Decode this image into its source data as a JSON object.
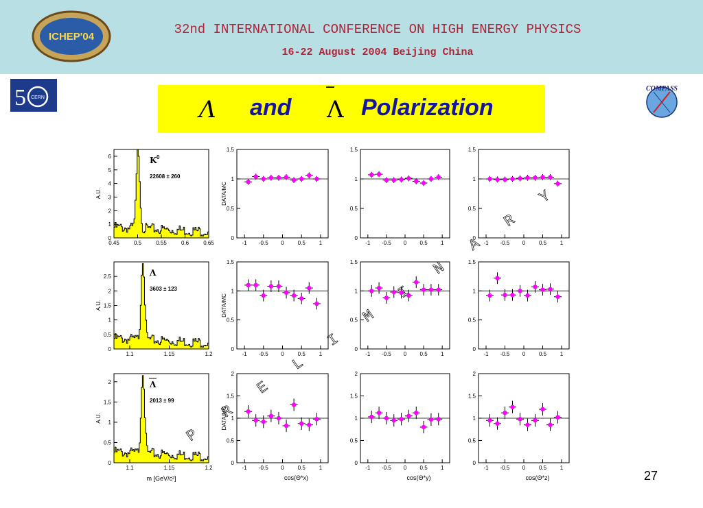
{
  "header": {
    "conference_title": "32nd INTERNATIONAL CONFERENCE ON HIGH ENERGY PHYSICS",
    "conference_date": "16-22 August 2004 Beijing China",
    "ichep_logo_text": "ICHEP'04",
    "cern_logo_text": "CERN",
    "compass_logo_text": "COMPASS"
  },
  "slide": {
    "title_lambda": "Λ",
    "title_and": "and",
    "title_antilambda": "Λ",
    "title_polarization": "Polarization",
    "page_number": "27",
    "watermark": "PRELIMINARY"
  },
  "colors": {
    "header_bg": "#b8dfe3",
    "title_bg": "#ffff00",
    "title_text": "#1515a0",
    "mass_fill": "#ffff00",
    "points": "#ff00ff",
    "header_text": "#b0243a"
  },
  "chart_data": [
    {
      "type": "histogram",
      "panel": "K0 mass",
      "label": "K",
      "label_sup": "0",
      "count_text": "22608 ± 260",
      "ylabel": "A.U.",
      "xlim": [
        0.45,
        0.65
      ],
      "ylim": [
        0,
        6.5
      ],
      "xticks": [
        "0.45",
        "0.5",
        "0.55",
        "0.6",
        "0.65"
      ],
      "yticks": [
        "0",
        "1",
        "2",
        "3",
        "4",
        "5",
        "6"
      ],
      "peak_x": 0.5,
      "peak_y": 5.8
    },
    {
      "type": "histogram",
      "panel": "Lambda mass",
      "label": "Λ",
      "count_text": "3603 ± 123",
      "ylabel": "A.U.",
      "xlim": [
        1.08,
        1.2
      ],
      "ylim": [
        0,
        3.0
      ],
      "xticks": [
        "1.1",
        "1.15",
        "1.2"
      ],
      "yticks": [
        "0",
        "0.5",
        "1",
        "1.5",
        "2",
        "2.5"
      ],
      "peak_x": 1.116,
      "peak_y": 2.8
    },
    {
      "type": "histogram",
      "panel": "anti-Lambda mass",
      "label": "Λ",
      "count_text": "2013 ± 99",
      "ylabel": "A.U.",
      "xlabel": "m [GeV/c²]",
      "xlim": [
        1.08,
        1.2
      ],
      "ylim": [
        0,
        2.2
      ],
      "xticks": [
        "1.1",
        "1.15",
        "1.2"
      ],
      "yticks": [
        "0",
        "0.5",
        "1",
        "1.5",
        "2"
      ],
      "peak_x": 1.116,
      "peak_y": 2.05
    },
    {
      "type": "scatter",
      "row": "K0",
      "axis": "x",
      "ylabel": "DATA/MC",
      "xlim": [
        -1.2,
        1.2
      ],
      "ylim": [
        0,
        1.5
      ],
      "x": [
        -0.9,
        -0.7,
        -0.5,
        -0.3,
        -0.1,
        0.1,
        0.3,
        0.5,
        0.7,
        0.9
      ],
      "y": [
        0.95,
        1.04,
        1.0,
        1.02,
        1.02,
        1.03,
        0.98,
        1.0,
        1.06,
        1.0
      ]
    },
    {
      "type": "scatter",
      "row": "K0",
      "axis": "y",
      "xlim": [
        -1.2,
        1.2
      ],
      "ylim": [
        0,
        1.5
      ],
      "x": [
        -0.9,
        -0.7,
        -0.5,
        -0.3,
        -0.1,
        0.1,
        0.3,
        0.5,
        0.7,
        0.9
      ],
      "y": [
        1.07,
        1.08,
        0.98,
        0.98,
        0.99,
        1.01,
        0.96,
        0.93,
        1.0,
        1.03
      ]
    },
    {
      "type": "scatter",
      "row": "K0",
      "axis": "z",
      "xlim": [
        -1.2,
        1.2
      ],
      "ylim": [
        0,
        1.5
      ],
      "x": [
        -0.9,
        -0.7,
        -0.5,
        -0.3,
        -0.1,
        0.1,
        0.3,
        0.5,
        0.7,
        0.9
      ],
      "y": [
        1.0,
        0.99,
        0.99,
        1.0,
        1.01,
        1.02,
        1.02,
        1.03,
        1.03,
        0.92
      ]
    },
    {
      "type": "scatter",
      "row": "Lambda",
      "axis": "x",
      "ylabel": "DATA/MC",
      "xlim": [
        -1.2,
        1.2
      ],
      "ylim": [
        0,
        1.5
      ],
      "x": [
        -0.9,
        -0.7,
        -0.5,
        -0.3,
        -0.1,
        0.1,
        0.3,
        0.5,
        0.7,
        0.9
      ],
      "y": [
        1.1,
        1.1,
        0.92,
        1.08,
        1.08,
        0.97,
        0.92,
        0.87,
        1.05,
        0.78
      ]
    },
    {
      "type": "scatter",
      "row": "Lambda",
      "axis": "y",
      "xlim": [
        -1.2,
        1.2
      ],
      "ylim": [
        0,
        1.5
      ],
      "x": [
        -0.9,
        -0.7,
        -0.5,
        -0.3,
        -0.1,
        0.1,
        0.3,
        0.5,
        0.7,
        0.9
      ],
      "y": [
        1.0,
        1.05,
        0.88,
        0.98,
        0.97,
        0.92,
        1.15,
        1.02,
        1.02,
        1.02
      ]
    },
    {
      "type": "scatter",
      "row": "Lambda",
      "axis": "z",
      "xlim": [
        -1.2,
        1.2
      ],
      "ylim": [
        0,
        1.5
      ],
      "x": [
        -0.9,
        -0.7,
        -0.5,
        -0.3,
        -0.1,
        0.1,
        0.3,
        0.5,
        0.7,
        0.9
      ],
      "y": [
        0.92,
        1.22,
        0.93,
        0.93,
        1.0,
        0.92,
        1.07,
        1.02,
        1.03,
        0.9
      ]
    },
    {
      "type": "scatter",
      "row": "anti-Lambda",
      "axis": "x",
      "ylabel": "DATA/MC",
      "xlabel": "cos(Θ*x)",
      "xlim": [
        -1.2,
        1.2
      ],
      "ylim": [
        0,
        2
      ],
      "x": [
        -0.9,
        -0.7,
        -0.5,
        -0.3,
        -0.1,
        0.1,
        0.3,
        0.5,
        0.7,
        0.9
      ],
      "y": [
        1.15,
        0.95,
        0.92,
        1.05,
        1.0,
        0.83,
        1.3,
        0.88,
        0.85,
        0.98
      ]
    },
    {
      "type": "scatter",
      "row": "anti-Lambda",
      "axis": "y",
      "xlabel": "cos(Θ*y)",
      "xlim": [
        -1.2,
        1.2
      ],
      "ylim": [
        0,
        2
      ],
      "x": [
        -0.9,
        -0.7,
        -0.5,
        -0.3,
        -0.1,
        0.1,
        0.3,
        0.5,
        0.7,
        0.9
      ],
      "y": [
        1.03,
        1.12,
        1.0,
        0.95,
        0.98,
        1.05,
        1.12,
        0.8,
        0.97,
        0.98
      ]
    },
    {
      "type": "scatter",
      "row": "anti-Lambda",
      "axis": "z",
      "xlabel": "cos(Θ*z)",
      "xlim": [
        -1.2,
        1.2
      ],
      "ylim": [
        0,
        2
      ],
      "x": [
        -0.9,
        -0.7,
        -0.5,
        -0.3,
        -0.1,
        0.1,
        0.3,
        0.5,
        0.7,
        0.9
      ],
      "y": [
        0.95,
        0.88,
        1.12,
        1.25,
        0.98,
        0.85,
        0.95,
        1.2,
        0.85,
        1.02
      ]
    }
  ]
}
